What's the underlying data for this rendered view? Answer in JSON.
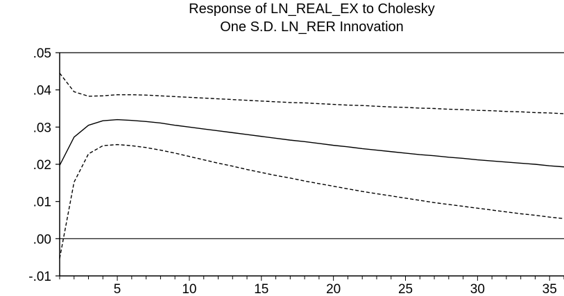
{
  "chart_data": {
    "type": "line",
    "title": "Response of LN_REAL_EX to Cholesky",
    "subtitle": "One S.D. LN_RER Innovation",
    "xlabel": "",
    "ylabel": "",
    "xlim": [
      1,
      36
    ],
    "ylim": [
      -0.01,
      0.05
    ],
    "x_ticks": [
      5,
      10,
      15,
      20,
      25,
      30,
      35
    ],
    "y_ticks": [
      -0.01,
      0.0,
      0.01,
      0.02,
      0.03,
      0.04,
      0.05
    ],
    "y_tick_labels": [
      "-.01",
      ".00",
      ".01",
      ".02",
      ".03",
      ".04",
      ".05"
    ],
    "zero_line": true,
    "grid": false,
    "x": [
      1,
      2,
      3,
      4,
      5,
      6,
      7,
      8,
      9,
      10,
      11,
      12,
      13,
      14,
      15,
      16,
      17,
      18,
      19,
      20,
      21,
      22,
      23,
      24,
      25,
      26,
      27,
      28,
      29,
      30,
      31,
      32,
      33,
      34,
      35,
      36
    ],
    "series": [
      {
        "style": "solid",
        "values": [
          0.0197,
          0.0273,
          0.0305,
          0.0317,
          0.032,
          0.0318,
          0.0315,
          0.0311,
          0.0305,
          0.03,
          0.0295,
          0.029,
          0.0285,
          0.028,
          0.0275,
          0.027,
          0.0265,
          0.0261,
          0.0256,
          0.0251,
          0.0247,
          0.0242,
          0.0238,
          0.0234,
          0.023,
          0.0226,
          0.0223,
          0.0219,
          0.0216,
          0.0212,
          0.0209,
          0.0206,
          0.0203,
          0.02,
          0.0196,
          0.0193
        ]
      },
      {
        "style": "dashed",
        "values": [
          0.0445,
          0.0395,
          0.0383,
          0.0384,
          0.0387,
          0.0387,
          0.0386,
          0.0384,
          0.0382,
          0.038,
          0.0378,
          0.0376,
          0.0374,
          0.0372,
          0.037,
          0.0368,
          0.0366,
          0.0365,
          0.0363,
          0.0361,
          0.0359,
          0.0358,
          0.0356,
          0.0354,
          0.0353,
          0.0351,
          0.035,
          0.0348,
          0.0347,
          0.0345,
          0.0344,
          0.0342,
          0.0341,
          0.0339,
          0.0338,
          0.0336
        ]
      },
      {
        "style": "dashed",
        "values": [
          -0.0053,
          0.0152,
          0.0228,
          0.025,
          0.0253,
          0.025,
          0.0245,
          0.0238,
          0.023,
          0.0221,
          0.0212,
          0.0203,
          0.0195,
          0.0186,
          0.0178,
          0.017,
          0.0163,
          0.0155,
          0.0148,
          0.0141,
          0.0134,
          0.0127,
          0.0121,
          0.0115,
          0.0109,
          0.0103,
          0.0097,
          0.0092,
          0.0087,
          0.0082,
          0.0077,
          0.0072,
          0.0067,
          0.0063,
          0.0058,
          0.0054
        ]
      }
    ]
  }
}
